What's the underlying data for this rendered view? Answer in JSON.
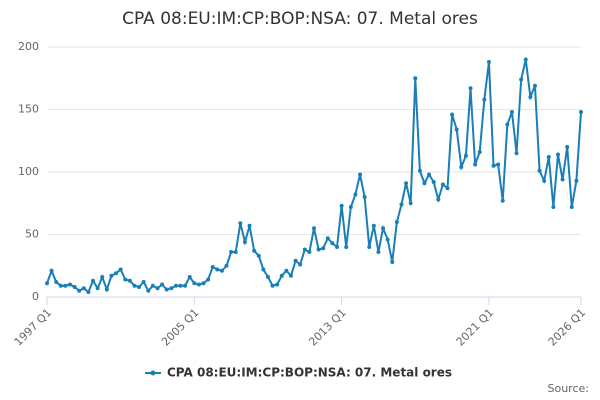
{
  "chart_data": {
    "type": "line",
    "title": "CPA 08:EU:IM:CP:BOP:NSA: 07. Metal ores",
    "source": "Source:",
    "categories": [
      "1997 Q1",
      null,
      null,
      null,
      null,
      null,
      null,
      null,
      null,
      null,
      null,
      null,
      null,
      null,
      null,
      null,
      null,
      null,
      null,
      null,
      null,
      null,
      null,
      null,
      null,
      null,
      null,
      null,
      null,
      null,
      null,
      null,
      "2005 Q1",
      null,
      null,
      null,
      null,
      null,
      null,
      null,
      null,
      null,
      null,
      null,
      null,
      null,
      null,
      null,
      null,
      null,
      null,
      null,
      null,
      null,
      null,
      null,
      null,
      null,
      null,
      null,
      null,
      null,
      null,
      null,
      "2013 Q1",
      null,
      null,
      null,
      null,
      null,
      null,
      null,
      null,
      null,
      null,
      null,
      null,
      null,
      null,
      null,
      null,
      null,
      null,
      null,
      null,
      null,
      null,
      null,
      null,
      null,
      null,
      null,
      null,
      null,
      null,
      null,
      "2021 Q1",
      null,
      null,
      null,
      null,
      null,
      null,
      null,
      null,
      null,
      null,
      null,
      null,
      null,
      null,
      null,
      null,
      null,
      null,
      null,
      "2026 Q1"
    ],
    "series": [
      {
        "name": "CPA 08:EU:IM:CP:BOP:NSA: 07. Metal ores",
        "color": "#1a7fb7",
        "values": [
          11,
          21,
          12,
          9,
          9,
          10,
          8,
          5,
          7,
          4,
          13,
          7,
          16,
          6,
          17,
          19,
          22,
          14,
          13,
          9,
          8,
          12,
          5,
          9,
          7,
          10,
          6,
          7,
          9,
          9,
          9,
          16,
          11,
          10,
          11,
          14,
          24,
          22,
          21,
          25,
          36,
          36,
          59,
          44,
          57,
          37,
          33,
          22,
          16,
          9,
          10,
          17,
          21,
          17,
          29,
          26,
          38,
          36,
          55,
          38,
          39,
          47,
          43,
          40,
          73,
          40,
          72,
          82,
          98,
          80,
          40,
          57,
          36,
          55,
          46,
          28,
          60,
          74,
          91,
          75,
          175,
          101,
          91,
          98,
          92,
          78,
          90,
          87,
          146,
          134,
          104,
          113,
          167,
          106,
          116,
          158,
          188,
          105,
          106,
          77,
          138,
          148,
          115,
          174,
          190,
          160,
          169,
          101,
          93,
          112,
          72,
          114,
          94,
          120,
          72,
          93,
          148
        ]
      }
    ],
    "ylim": [
      0,
      200
    ],
    "yticks": [
      0,
      50,
      100,
      150,
      200
    ],
    "grid": true,
    "legend": "bottom"
  }
}
